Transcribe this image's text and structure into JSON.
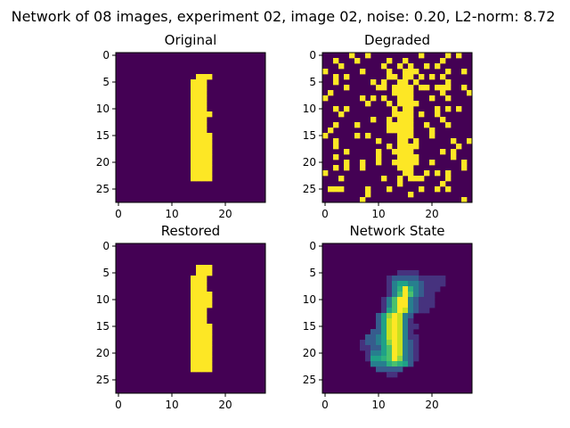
{
  "figure": {
    "title": "Network of 08 images, experiment 02, image 02, noise: 0.20, L2-norm: 8.72"
  },
  "chart_data": [
    {
      "type": "heatmap",
      "title": "Original",
      "colormap": "viridis",
      "grid": false,
      "size": [
        28,
        28
      ],
      "xlim": [
        -0.5,
        27.5
      ],
      "ylim": [
        27.5,
        -0.5
      ],
      "xticks": [
        0,
        10,
        20
      ],
      "yticks": [
        0,
        5,
        10,
        15,
        20,
        25
      ],
      "value_range": [
        0,
        1
      ],
      "rows": [
        "............................",
        "............................",
        "............................",
        "............................",
        "...............###..........",
        "..............###...........",
        "..............###...........",
        "..............###...........",
        "..............###...........",
        "..............###...........",
        "..............###...........",
        "..............####..........",
        "..............###...........",
        "..............###...........",
        "..............###...........",
        "..............####..........",
        "..............####..........",
        "..............####..........",
        "..............####..........",
        "..............####..........",
        "..............####..........",
        "..............####..........",
        "..............####..........",
        "..............####..........",
        "............................",
        "............................",
        "............................",
        "............................"
      ]
    },
    {
      "type": "heatmap",
      "title": "Degraded",
      "colormap": "viridis",
      "grid": false,
      "size": [
        28,
        28
      ],
      "xlim": [
        -0.5,
        27.5
      ],
      "ylim": [
        27.5,
        -0.5
      ],
      "xticks": [
        0,
        10,
        20
      ],
      "yticks": [
        0,
        5,
        10,
        15,
        20,
        25
      ],
      "value_range": [
        0,
        1
      ],
      "rows": [
        ".....#..#.........#....#.#..",
        "..#...#.....#..#......#.....",
        "...#.......#..#.#..#.#......",
        "#......#....#..###.....#..#.",
        "..#.#.......##.##.#.#.#.....",
        "..#......#.#..##.#.....#....",
        "....#.....##.####.##.###..#.",
        ".#...........####.....#....#",
        "#......#.#.#..###...#..#....",
        "........#...#.####..........",
        "..#.#........#.##....#.#.#..",
        "...#.........####.#..#......",
        ".........#..#.###.....#.....",
        "..#...#.....#####..#...#....",
        ".#..........#####...#.......",
        "#.....#.#.....###...#.......",
        "..#.......#...##.#......#..#",
        "..#.........#.####.......#..",
        "....#.....#..####.....#.#...",
        "..#.......#...####......#...",
        "....#..#..#..#####..#.....#.",
        "..#.#..#......###.........#.",
        "#..............##..#.#.#....",
        "...#.......#..#.###....#....",
        "..............#.......#.....",
        ".###....#...#.....#..#.#....",
        "........#.......#...........",
        ".......#..................#."
      ]
    },
    {
      "type": "heatmap",
      "title": "Restored",
      "colormap": "viridis",
      "grid": false,
      "size": [
        28,
        28
      ],
      "xlim": [
        -0.5,
        27.5
      ],
      "ylim": [
        27.5,
        -0.5
      ],
      "xticks": [
        0,
        10,
        20
      ],
      "yticks": [
        0,
        5,
        10,
        15,
        20,
        25
      ],
      "value_range": [
        0,
        1
      ],
      "rows": [
        "............................",
        "............................",
        "............................",
        "............................",
        "...............###..........",
        "...............###..........",
        "..............###...........",
        "..............###...........",
        "..............###...........",
        "..............####..........",
        "..............####..........",
        "..............####..........",
        "..............###...........",
        "..............###...........",
        "..............###...........",
        "..............####..........",
        "..............####..........",
        "..............####..........",
        "..............####..........",
        "..............####..........",
        "..............####..........",
        "..............####..........",
        "..............####..........",
        "..............####..........",
        "............................",
        "............................",
        "............................",
        "............................"
      ]
    },
    {
      "type": "heatmap",
      "title": "Network State",
      "colormap": "viridis",
      "grid": false,
      "size": [
        28,
        28
      ],
      "xlim": [
        -0.5,
        27.5
      ],
      "ylim": [
        27.5,
        -0.5
      ],
      "xticks": [
        0,
        10,
        20
      ],
      "yticks": [
        0,
        5,
        10,
        15,
        20,
        25
      ],
      "value_range": [
        0,
        1
      ],
      "rows": [
        "............................",
        "............................",
        "............................",
        "............................",
        "............................",
        "..............1111..........",
        "............12222211111.....",
        "............13443321111.....",
        "............1359532111......",
        "............136963211.......",
        "...........1369932111.......",
        "...........1369932111.......",
        "...........146983211........",
        "..........2479832...........",
        "..........2489831...........",
        "..........24898311..........",
        ".........22489831...........",
        "........2234898311..........",
        ".......12234798321..........",
        ".......11224698321..........",
        "........1334698321..........",
        "........1445697321..........",
        ".........33356542...........",
        "..........22222.............",
        "............11..............",
        "............................",
        "............................",
        "............................"
      ]
    }
  ]
}
